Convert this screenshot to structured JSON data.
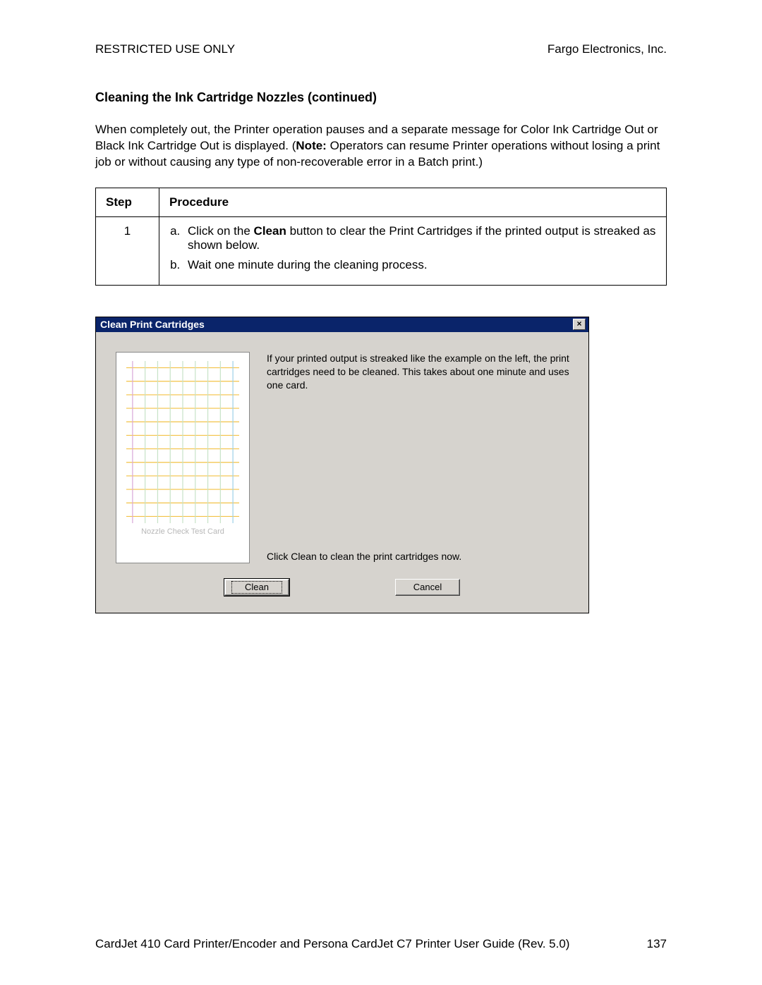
{
  "header": {
    "left": "RESTRICTED USE ONLY",
    "right": "Fargo Electronics, Inc."
  },
  "section_title": "Cleaning the Ink Cartridge Nozzles (continued)",
  "paragraph": {
    "pre": "When completely out, the Printer operation pauses and a separate message for Color Ink Cartridge Out or Black Ink Cartridge Out is displayed. (",
    "note_label": "Note:",
    "post": "  Operators can resume Printer operations without losing a print job or without causing any type of non-recoverable error in a Batch print.)"
  },
  "table": {
    "head_step": "Step",
    "head_proc": "Procedure",
    "row": {
      "num": "1",
      "a_pre": "Click on the ",
      "a_bold": "Clean",
      "a_post": " button to clear the Print Cartridges if the printed output is streaked as shown below.",
      "b": "Wait one minute during the cleaning process."
    }
  },
  "dialog": {
    "title": "Clean Print Cartridges",
    "close_glyph": "×",
    "card_caption": "Nozzle Check Test Card",
    "msg1": "If your printed output is streaked like the example on the left, the print cartridges need to be cleaned.  This takes about one minute and uses one card.",
    "msg2": "Click Clean to clean the print cartridges now.",
    "btn_clean": "Clean",
    "btn_cancel": "Cancel",
    "grid": {
      "hline_colors": [
        "#f3c246",
        "#f3c246",
        "#f3c246",
        "#f3c246",
        "#f3c246",
        "#f3c246",
        "#f3c246",
        "#f3c246",
        "#f3c246",
        "#f3c246",
        "#f3c246",
        "#f3c246"
      ],
      "vline_colors": [
        "#d9a8d9",
        "#c7e3c7",
        "#c7e3c7",
        "#c7e3c7",
        "#c7e3c7",
        "#c7e3c7",
        "#c7e3c7",
        "#c7e3c7",
        "#9ed0e8"
      ]
    }
  },
  "footer": {
    "text": "CardJet 410 Card Printer/Encoder and Persona CardJet C7 Printer User Guide (Rev. 5.0)",
    "page": "137"
  }
}
